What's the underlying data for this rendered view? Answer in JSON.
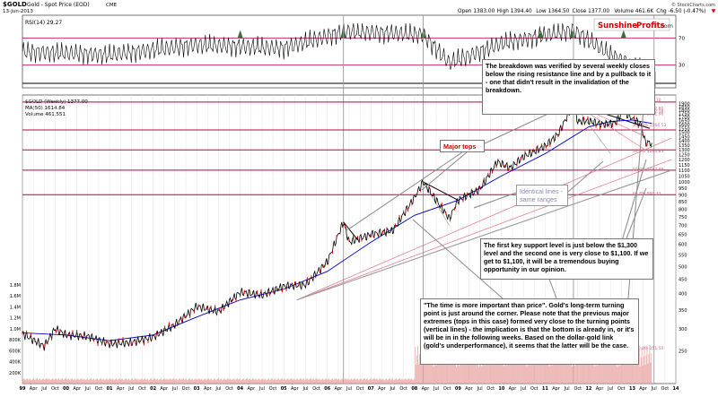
{
  "header": {
    "symbol": "$GOLD",
    "description": "Gold - Spot Price (EOD)",
    "exchange": "CME",
    "date": "13-Jun-2013",
    "ohlc": [
      {
        "label": "Open",
        "value": "1383.00"
      },
      {
        "label": "High",
        "value": "1394.40"
      },
      {
        "label": "Low",
        "value": "1364.50"
      },
      {
        "label": "Close",
        "value": "1377.00"
      },
      {
        "label": "Volume",
        "value": "461.6K"
      },
      {
        "label": "Chg",
        "value": "-6.50 (-0.47%)"
      }
    ],
    "arrow": "▼",
    "credit": "© StockCharts.com"
  },
  "logo": {
    "part1": "Sunshine",
    "part2": "Profits",
    "part3": ".com"
  },
  "colors": {
    "price": "#000000",
    "down_candle": "#d00000",
    "ma": "#0000cc",
    "volume": "#e8a0a0",
    "resistance": "#c0003c",
    "fib": "#d86080",
    "trend": "#e07080",
    "oversold_fill": "#3a6b3a",
    "annotation_title": "#cc0000",
    "box_gray": "#888888"
  },
  "rsi_panel": {
    "legend": "RSI(14) 29.27",
    "levels": [
      "70",
      "30"
    ],
    "level_values": [
      70,
      30
    ]
  },
  "price_panel": {
    "legend_symbol": "$GOLD (Weekly) 1377.00",
    "legend_ma": "MA(50) 1614.84",
    "legend_volume": "Volume 461,551",
    "y_ticks": [
      "1900",
      "1850",
      "1800",
      "1750",
      "1700",
      "1650",
      "1600",
      "1550",
      "1500",
      "1450",
      "1400",
      "1350",
      "1300",
      "1250",
      "1200",
      "1150",
      "1100",
      "1050",
      "1000",
      "950",
      "900",
      "850",
      "800",
      "750",
      "700",
      "650",
      "600",
      "550",
      "500",
      "450",
      "400",
      "350",
      "300",
      "250"
    ],
    "volume_ticks": [
      "1.8M",
      "1.6M",
      "1.4M",
      "1.2M",
      "1.0M",
      "800K",
      "600K",
      "400K",
      "200K"
    ],
    "volume_tick_values": [
      1800,
      1600,
      1400,
      1200,
      1000,
      800,
      600,
      400,
      200
    ],
    "x_labels": [
      "99",
      "Apr",
      "Jul",
      "Oct",
      "00",
      "Apr",
      "Jul",
      "Oct",
      "01",
      "Apr",
      "Jul",
      "Oct",
      "02",
      "Apr",
      "Jul",
      "Oct",
      "03",
      "Apr",
      "Jul",
      "Oct",
      "04",
      "Apr",
      "Jul",
      "Oct",
      "05",
      "Apr",
      "Jul",
      "Oct",
      "06",
      "Apr",
      "Jul",
      "Oct",
      "07",
      "Apr",
      "Jul",
      "Oct",
      "08",
      "Apr",
      "Jul",
      "Oct",
      "09",
      "Apr",
      "Jul",
      "Oct",
      "10",
      "Apr",
      "Jul",
      "Oct",
      "11",
      "Apr",
      "Jul",
      "Oct",
      "12",
      "Apr",
      "Jul",
      "Oct",
      "13",
      "Apr",
      "Jul",
      "Oct",
      "14"
    ],
    "horizontal_levels": [
      {
        "value": 1923,
        "label": "0.0% 1923.70"
      },
      {
        "value": 1530,
        "label": "1531.95"
      },
      {
        "value": 1300,
        "label": "1300"
      },
      {
        "value": 1100,
        "label": "1100"
      },
      {
        "value": 900,
        "label": "900"
      }
    ],
    "fib_labels": [
      "0.0% 1923.70",
      "38.2% 1792.80",
      "50.0% 1752.38",
      "61.8% 1711.96",
      "100.0% 1564.53",
      "38.2% 1264.85",
      "50.0% 1087.88",
      "61.8% 890.33",
      "100.0% 251.50"
    ]
  },
  "annotations": {
    "major_tops": "Major tops",
    "identical": "Identical lines -\nsame ranges",
    "breakdown": "The breakdown was verified by several weekly closes below the rising resistance line and by a pullback to it - one that didn't result in the invalidation of the breakdown.",
    "support": "The first key support level is just below the $1,300 level and the second one is very close to $1,100. If we get to $1,100, it will be a tremendous buying opportunity in our opinion.",
    "time": "\"The time is more important than price\". Gold's long-term turning point is just around the corner. Please note that the previous major extremes (tops in this case) formed very close to the turning points (vertical lines) - the implication is that the bottom is already in, or it's will be in in the following weeks. Based on the dollar-gold link (gold's underperformance), it seems that the latter will be the case."
  },
  "chart_data": {
    "type": "line",
    "title": "$GOLD Gold - Spot Price (EOD) CME",
    "x_unit": "year",
    "series": [
      {
        "name": "$GOLD (Weekly)",
        "x": [
          1999.0,
          1999.5,
          1999.75,
          2000.0,
          2000.5,
          2001.0,
          2001.5,
          2002.0,
          2002.5,
          2003.0,
          2003.5,
          2004.0,
          2004.5,
          2005.0,
          2005.5,
          2006.0,
          2006.37,
          2006.5,
          2007.0,
          2007.5,
          2008.0,
          2008.2,
          2008.8,
          2009.0,
          2009.5,
          2009.9,
          2010.2,
          2010.5,
          2011.0,
          2011.3,
          2011.65,
          2011.75,
          2012.0,
          2012.3,
          2012.6,
          2012.8,
          2013.0,
          2013.2,
          2013.3,
          2013.45
        ],
        "values": [
          288,
          260,
          300,
          285,
          282,
          265,
          268,
          280,
          310,
          360,
          345,
          405,
          395,
          425,
          430,
          520,
          720,
          610,
          650,
          670,
          880,
          1000,
          740,
          860,
          940,
          1180,
          1120,
          1230,
          1340,
          1480,
          1900,
          1640,
          1650,
          1600,
          1620,
          1780,
          1680,
          1600,
          1380,
          1377
        ]
      },
      {
        "name": "MA(50)",
        "x": [
          1999.0,
          2000.0,
          2001.0,
          2002.0,
          2003.0,
          2004.0,
          2005.0,
          2006.0,
          2007.0,
          2008.0,
          2009.0,
          2010.0,
          2011.0,
          2012.0,
          2012.5,
          2013.0,
          2013.45
        ],
        "values": [
          290,
          285,
          272,
          285,
          330,
          380,
          415,
          480,
          610,
          760,
          860,
          1050,
          1260,
          1570,
          1640,
          1660,
          1615
        ]
      },
      {
        "name": "RSI(14)",
        "x": [
          1999.0,
          2001.0,
          2003.0,
          2005.0,
          2006.4,
          2008.2,
          2008.8,
          2010.0,
          2011.65,
          2012.5,
          2013.3,
          2013.45
        ],
        "values": [
          50,
          45,
          60,
          55,
          80,
          75,
          33,
          62,
          82,
          45,
          22,
          29.27
        ]
      }
    ],
    "horizontal_levels": [
      1923.7,
      1531.95,
      1300,
      1100,
      900
    ],
    "ylim": [
      200,
      1950
    ],
    "y_scale": "log",
    "rsi_ylim": [
      0,
      100
    ],
    "volume_ylim": [
      0,
      1800000
    ],
    "grid": true
  }
}
